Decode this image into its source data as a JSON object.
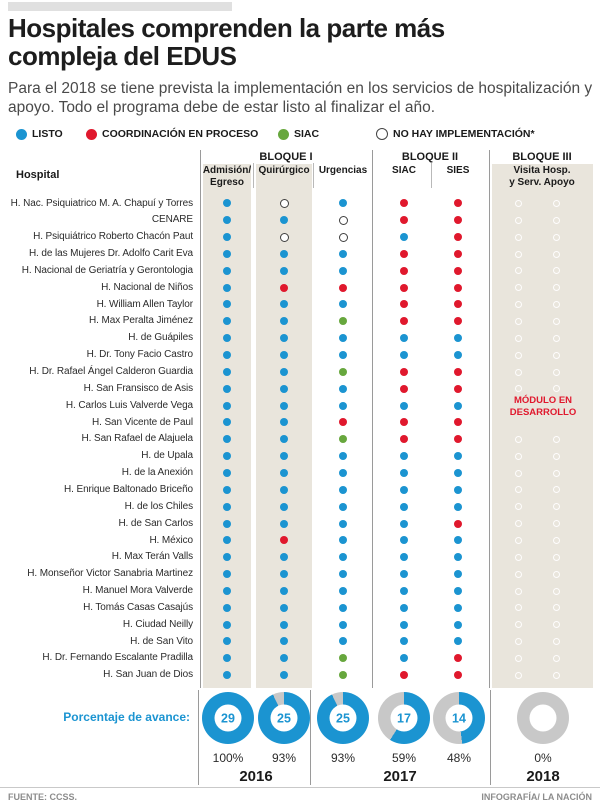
{
  "palette": {
    "listo": "#1b94d1",
    "proceso": "#e0182d",
    "siac": "#67a73d",
    "gray_ring": "#c8c8c8",
    "beige": "#e9e5dc"
  },
  "header": {
    "title": "Hospitales comprenden la parte más compleja del EDUS",
    "subtitle": "Para el 2018 se tiene prevista la implementación en los servicios de hospitalización y apoyo. Todo el programa debe de estar listo al finalizar el año."
  },
  "legend": {
    "items": [
      {
        "label": "LISTO",
        "status": "listo"
      },
      {
        "label": "COORDINACIÓN EN PROCESO",
        "status": "proceso"
      },
      {
        "label": "SIAC",
        "status": "siac"
      },
      {
        "label": "NO HAY IMPLEMENTACIÓN*",
        "status": "none"
      }
    ]
  },
  "table": {
    "hospital_header": "Hospital",
    "blocks": [
      "BLOQUE I",
      "BLOQUE II",
      "BLOQUE III"
    ],
    "columns": [
      {
        "l1": "Admisión/",
        "l2": "Egreso"
      },
      {
        "l1": "Quirúrgico",
        "l2": ""
      },
      {
        "l1": "Urgencias",
        "l2": ""
      },
      {
        "l1": "SIAC",
        "l2": ""
      },
      {
        "l1": "SIES",
        "l2": ""
      },
      {
        "l1": "Visita Hosp.",
        "l2": "y Serv. Apoyo"
      }
    ],
    "module_note": "MÓDULO EN DESARROLLO"
  },
  "progress": {
    "label": "Porcentaje de avance:",
    "years": [
      "2016",
      "2017",
      "2018"
    ]
  },
  "footer": {
    "source": "FUENTE: CCSS.",
    "credit": "INFOGRAFÍA/ LA NACIÓN"
  },
  "chart_data": [
    {
      "type": "table",
      "title": "Estado de implementación del EDUS por hospital y módulo",
      "status_legend": {
        "listo": "LISTO",
        "proceso": "COORDINACIÓN EN PROCESO",
        "siac": "SIAC",
        "none": "NO HAY IMPLEMENTACIÓN*"
      },
      "columns": [
        "Admisión/Egreso",
        "Quirúrgico",
        "Urgencias",
        "SIAC",
        "SIES",
        "Visita Hosp. y Serv. Apoyo"
      ],
      "rows": [
        {
          "name": "H. Nac. Psiquiatrico M. A. Chapuí y Torres",
          "dots": [
            "listo",
            "none",
            "listo",
            "proceso",
            "proceso"
          ],
          "rings": true
        },
        {
          "name": "CENARE",
          "dots": [
            "listo",
            "listo",
            "none",
            "proceso",
            "proceso"
          ],
          "rings": true
        },
        {
          "name": "H. Psiquiátrico Roberto Chacón Paut",
          "dots": [
            "listo",
            "none",
            "none",
            "listo",
            "proceso"
          ],
          "rings": true
        },
        {
          "name": "H. de las Mujeres Dr. Adolfo Carit Eva",
          "dots": [
            "listo",
            "listo",
            "listo",
            "proceso",
            "proceso"
          ],
          "rings": true
        },
        {
          "name": "H. Nacional de Geriatría y Gerontologia",
          "dots": [
            "listo",
            "listo",
            "listo",
            "proceso",
            "proceso"
          ],
          "rings": true
        },
        {
          "name": "H. Nacional de Niños",
          "dots": [
            "listo",
            "proceso",
            "proceso",
            "proceso",
            "proceso"
          ],
          "rings": true
        },
        {
          "name": "H. William Allen Taylor",
          "dots": [
            "listo",
            "listo",
            "listo",
            "proceso",
            "proceso"
          ],
          "rings": true
        },
        {
          "name": "H. Max Peralta Jiménez",
          "dots": [
            "listo",
            "listo",
            "siac",
            "proceso",
            "proceso"
          ],
          "rings": true
        },
        {
          "name": "H. de Guápiles",
          "dots": [
            "listo",
            "listo",
            "listo",
            "listo",
            "listo"
          ],
          "rings": true
        },
        {
          "name": "H. Dr. Tony Facio Castro",
          "dots": [
            "listo",
            "listo",
            "listo",
            "listo",
            "listo"
          ],
          "rings": true
        },
        {
          "name": "H. Dr. Rafael Ángel Calderon Guardia",
          "dots": [
            "listo",
            "listo",
            "siac",
            "proceso",
            "proceso"
          ],
          "rings": true
        },
        {
          "name": "H. San Fransisco de Asis",
          "dots": [
            "listo",
            "listo",
            "listo",
            "proceso",
            "proceso"
          ],
          "rings": true
        },
        {
          "name": "H. Carlos Luis Valverde Vega",
          "dots": [
            "listo",
            "listo",
            "listo",
            "listo",
            "listo"
          ],
          "rings": false
        },
        {
          "name": "H. San Vicente de Paul",
          "dots": [
            "listo",
            "listo",
            "proceso",
            "proceso",
            "proceso"
          ],
          "rings": false
        },
        {
          "name": "H. San Rafael de Alajuela",
          "dots": [
            "listo",
            "listo",
            "siac",
            "proceso",
            "proceso"
          ],
          "rings": true
        },
        {
          "name": "H. de Upala",
          "dots": [
            "listo",
            "listo",
            "listo",
            "listo",
            "listo"
          ],
          "rings": true
        },
        {
          "name": "H. de la Anexión",
          "dots": [
            "listo",
            "listo",
            "listo",
            "listo",
            "listo"
          ],
          "rings": true
        },
        {
          "name": "H. Enrique Baltonado Briceño",
          "dots": [
            "listo",
            "listo",
            "listo",
            "listo",
            "listo"
          ],
          "rings": true
        },
        {
          "name": "H. de los Chiles",
          "dots": [
            "listo",
            "listo",
            "listo",
            "listo",
            "listo"
          ],
          "rings": true
        },
        {
          "name": "H. de San Carlos",
          "dots": [
            "listo",
            "listo",
            "listo",
            "listo",
            "proceso"
          ],
          "rings": true
        },
        {
          "name": "H. México",
          "dots": [
            "listo",
            "proceso",
            "listo",
            "listo",
            "listo"
          ],
          "rings": true
        },
        {
          "name": "H. Max Terán Valls",
          "dots": [
            "listo",
            "listo",
            "listo",
            "listo",
            "listo"
          ],
          "rings": true
        },
        {
          "name": "H. Monseñor Victor Sanabria Martinez",
          "dots": [
            "listo",
            "listo",
            "listo",
            "listo",
            "listo"
          ],
          "rings": true
        },
        {
          "name": "H. Manuel Mora Valverde",
          "dots": [
            "listo",
            "listo",
            "listo",
            "listo",
            "listo"
          ],
          "rings": true
        },
        {
          "name": "H. Tomás Casas Casajús",
          "dots": [
            "listo",
            "listo",
            "listo",
            "listo",
            "listo"
          ],
          "rings": true
        },
        {
          "name": "H. Ciudad Neilly",
          "dots": [
            "listo",
            "listo",
            "listo",
            "listo",
            "listo"
          ],
          "rings": true
        },
        {
          "name": "H. de San Vito",
          "dots": [
            "listo",
            "listo",
            "listo",
            "listo",
            "listo"
          ],
          "rings": true
        },
        {
          "name": "H. Dr. Fernando Escalante Pradilla",
          "dots": [
            "listo",
            "listo",
            "siac",
            "listo",
            "proceso"
          ],
          "rings": true
        },
        {
          "name": "H. San Juan de Dios",
          "dots": [
            "listo",
            "listo",
            "siac",
            "proceso",
            "proceso"
          ],
          "rings": true
        }
      ]
    },
    {
      "type": "pie",
      "title": "Porcentaje de avance",
      "donuts": [
        {
          "module": "Admisión/Egreso",
          "year": "2016",
          "count": 29,
          "percent": 100,
          "percent_label": "100%"
        },
        {
          "module": "Quirúrgico",
          "year": "2016",
          "count": 25,
          "percent": 93,
          "percent_label": "93%"
        },
        {
          "module": "Urgencias",
          "year": "2017",
          "count": 25,
          "percent": 93,
          "percent_label": "93%"
        },
        {
          "module": "SIAC",
          "year": "2017",
          "count": 17,
          "percent": 59,
          "percent_label": "59%"
        },
        {
          "module": "SIES",
          "year": "2017",
          "count": 14,
          "percent": 48,
          "percent_label": "48%"
        },
        {
          "module": "Visita Hosp. y Serv. Apoyo",
          "year": "2018",
          "count": null,
          "percent": 0,
          "percent_label": "0%"
        }
      ],
      "years": [
        "2016",
        "2017",
        "2018"
      ]
    }
  ]
}
